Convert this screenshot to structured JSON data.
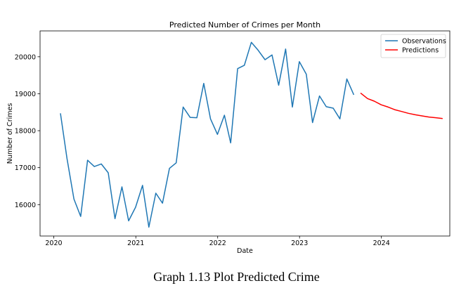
{
  "caption": "Graph 1.13 Plot Predicted Crime",
  "chart_data": {
    "type": "line",
    "title": "Predicted Number of Crimes per Month",
    "xlabel": "Date",
    "ylabel": "Number of Crimes",
    "xlim": [
      "2019-11-01",
      "2024-11-01"
    ],
    "ylim": [
      15150,
      20700
    ],
    "x_ticks": [
      "2020-01-01",
      "2021-01-01",
      "2022-01-01",
      "2023-01-01",
      "2024-01-01"
    ],
    "x_tick_labels": [
      "2020",
      "2021",
      "2022",
      "2023",
      "2024"
    ],
    "y_ticks": [
      16000,
      17000,
      18000,
      19000,
      20000
    ],
    "y_tick_labels": [
      "16000",
      "17000",
      "18000",
      "19000",
      "20000"
    ],
    "legend_position": "top-right",
    "grid": false,
    "series": [
      {
        "name": "Observations",
        "color": "#1f77b4",
        "x": [
          "2020-01-31",
          "2020-02-29",
          "2020-03-31",
          "2020-04-30",
          "2020-05-31",
          "2020-06-30",
          "2020-07-31",
          "2020-08-31",
          "2020-09-30",
          "2020-10-31",
          "2020-11-30",
          "2020-12-31",
          "2021-01-31",
          "2021-02-28",
          "2021-03-31",
          "2021-04-30",
          "2021-05-31",
          "2021-06-30",
          "2021-07-31",
          "2021-08-31",
          "2021-09-30",
          "2021-10-31",
          "2021-11-30",
          "2021-12-31",
          "2022-01-31",
          "2022-02-28",
          "2022-03-31",
          "2022-04-30",
          "2022-05-31",
          "2022-06-30",
          "2022-07-31",
          "2022-08-31",
          "2022-09-30",
          "2022-10-31",
          "2022-11-30",
          "2022-12-31",
          "2023-01-31",
          "2023-02-28",
          "2023-03-31",
          "2023-04-30",
          "2023-05-31",
          "2023-06-30",
          "2023-07-31",
          "2023-08-31"
        ],
        "values": [
          18470,
          17250,
          16150,
          15680,
          17200,
          17030,
          17100,
          16860,
          15620,
          16480,
          15560,
          15930,
          16520,
          15390,
          16310,
          16040,
          16980,
          17130,
          18640,
          18360,
          18350,
          19280,
          18320,
          17900,
          18420,
          17670,
          19680,
          19770,
          20390,
          20180,
          19920,
          20050,
          19230,
          20210,
          18640,
          19870,
          19530,
          18220,
          18940,
          18650,
          18610,
          18320,
          19400,
          18970
        ]
      },
      {
        "name": "Predictions",
        "color": "#ff0000",
        "x": [
          "2023-09-30",
          "2023-10-31",
          "2023-11-30",
          "2023-12-31",
          "2024-01-31",
          "2024-02-29",
          "2024-03-31",
          "2024-04-30",
          "2024-05-31",
          "2024-06-30",
          "2024-07-31",
          "2024-08-31",
          "2024-09-30"
        ],
        "values": [
          19020,
          18870,
          18800,
          18700,
          18640,
          18570,
          18520,
          18470,
          18430,
          18400,
          18370,
          18350,
          18330
        ]
      }
    ]
  }
}
